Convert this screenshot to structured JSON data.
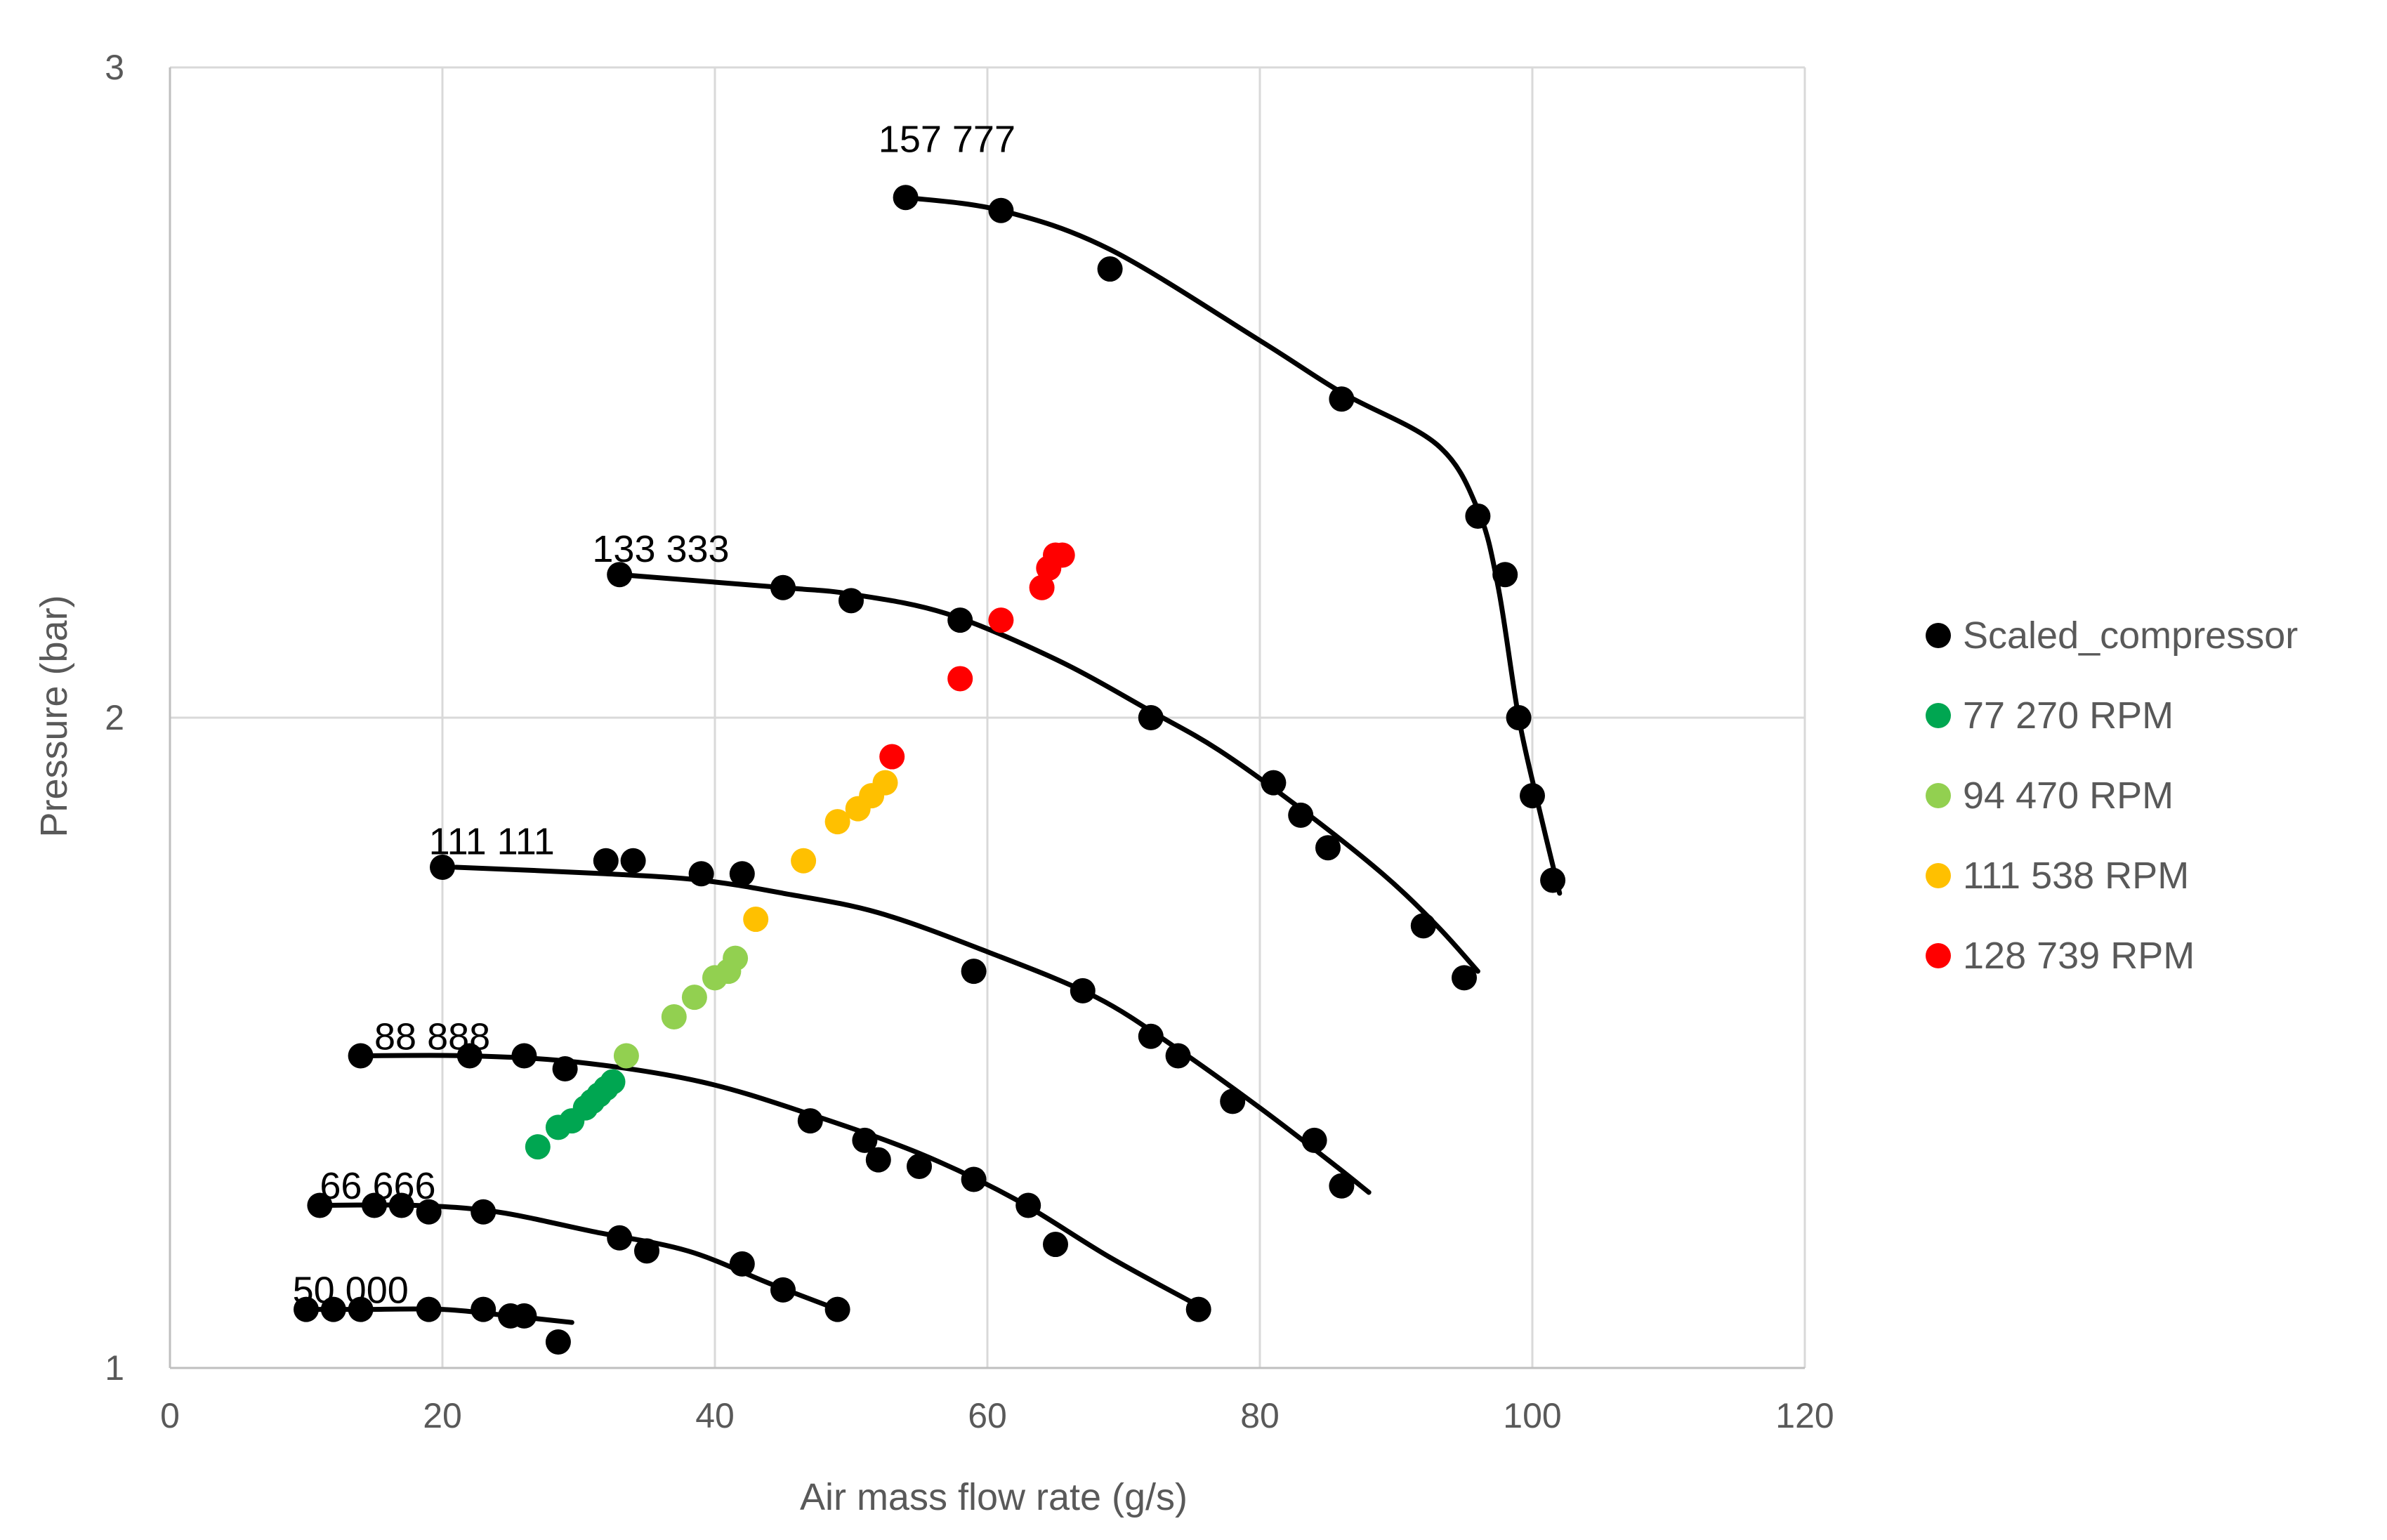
{
  "chart_data": {
    "type": "scatter",
    "title": "",
    "xlabel": "Air mass flow rate (g/s)",
    "ylabel": "Pressure (bar)",
    "xlim": [
      0,
      120
    ],
    "ylim": [
      1,
      3
    ],
    "xticks": [
      0,
      20,
      40,
      60,
      80,
      100,
      120
    ],
    "yticks": [
      1,
      2,
      3
    ],
    "grid": true,
    "legend_position": "right",
    "colors": {
      "Scaled_compressor": "#000000",
      "rpm77": "#00a651",
      "rpm94": "#92d050",
      "rpm111": "#ffc000",
      "rpm128": "#ff0000",
      "grid": "#d9d9d9",
      "axis": "#bfbfbf"
    },
    "series": [
      {
        "name": "Scaled_compressor",
        "color": "#000000",
        "points": [
          [
            54,
            2.8
          ],
          [
            61,
            2.78
          ],
          [
            69,
            2.69
          ],
          [
            86,
            2.49
          ],
          [
            96,
            2.31
          ],
          [
            98,
            2.22
          ],
          [
            99,
            2.0
          ],
          [
            100,
            1.88
          ],
          [
            101.5,
            1.75
          ],
          [
            33,
            2.22
          ],
          [
            45,
            2.2
          ],
          [
            50,
            2.18
          ],
          [
            58,
            2.15
          ],
          [
            72,
            2.0
          ],
          [
            81,
            1.9
          ],
          [
            83,
            1.85
          ],
          [
            85,
            1.8
          ],
          [
            92,
            1.68
          ],
          [
            95,
            1.6
          ],
          [
            20,
            1.77
          ],
          [
            32,
            1.78
          ],
          [
            34,
            1.78
          ],
          [
            39,
            1.76
          ],
          [
            42,
            1.76
          ],
          [
            59,
            1.61
          ],
          [
            67,
            1.58
          ],
          [
            72,
            1.51
          ],
          [
            74,
            1.48
          ],
          [
            78,
            1.41
          ],
          [
            84,
            1.35
          ],
          [
            86,
            1.28
          ],
          [
            14,
            1.48
          ],
          [
            22,
            1.48
          ],
          [
            26,
            1.48
          ],
          [
            29,
            1.46
          ],
          [
            47,
            1.38
          ],
          [
            51,
            1.35
          ],
          [
            52,
            1.32
          ],
          [
            55,
            1.31
          ],
          [
            59,
            1.29
          ],
          [
            63,
            1.25
          ],
          [
            65,
            1.19
          ],
          [
            75.5,
            1.09
          ],
          [
            11,
            1.25
          ],
          [
            15,
            1.25
          ],
          [
            17,
            1.25
          ],
          [
            19,
            1.24
          ],
          [
            23,
            1.24
          ],
          [
            33,
            1.2
          ],
          [
            35,
            1.18
          ],
          [
            42,
            1.16
          ],
          [
            45,
            1.12
          ],
          [
            49,
            1.09
          ],
          [
            10,
            1.09
          ],
          [
            12,
            1.09
          ],
          [
            14,
            1.09
          ],
          [
            19,
            1.09
          ],
          [
            23,
            1.09
          ],
          [
            25,
            1.08
          ],
          [
            26,
            1.08
          ],
          [
            28.5,
            1.04
          ]
        ]
      },
      {
        "name": "77 270 RPM",
        "color": "#00a651",
        "points": [
          [
            27,
            1.34
          ],
          [
            28.5,
            1.37
          ],
          [
            29.5,
            1.38
          ],
          [
            30.5,
            1.4
          ],
          [
            31,
            1.41
          ],
          [
            31.5,
            1.42
          ],
          [
            32,
            1.43
          ],
          [
            32.5,
            1.44
          ]
        ]
      },
      {
        "name": "94 470 RPM",
        "color": "#92d050",
        "points": [
          [
            33.5,
            1.48
          ],
          [
            37,
            1.54
          ],
          [
            38.5,
            1.57
          ],
          [
            40,
            1.6
          ],
          [
            41,
            1.61
          ],
          [
            41.5,
            1.63
          ]
        ]
      },
      {
        "name": "111 538 RPM",
        "color": "#ffc000",
        "points": [
          [
            43,
            1.69
          ],
          [
            46.5,
            1.78
          ],
          [
            49,
            1.84
          ],
          [
            50.5,
            1.86
          ],
          [
            51.5,
            1.88
          ],
          [
            52.5,
            1.9
          ]
        ]
      },
      {
        "name": "128 739 RPM",
        "color": "#ff0000",
        "points": [
          [
            53,
            1.94
          ],
          [
            58,
            2.06
          ],
          [
            61,
            2.15
          ],
          [
            64,
            2.2
          ],
          [
            64.5,
            2.23
          ],
          [
            65,
            2.25
          ],
          [
            65.5,
            2.25
          ]
        ]
      }
    ],
    "speed_lines": [
      {
        "label": "157 777",
        "label_at": [
          52,
          2.87
        ],
        "points": [
          [
            54,
            2.8
          ],
          [
            61,
            2.78
          ],
          [
            69,
            2.72
          ],
          [
            80,
            2.58
          ],
          [
            86,
            2.5
          ],
          [
            93,
            2.42
          ],
          [
            96,
            2.32
          ],
          [
            97.5,
            2.2
          ],
          [
            99,
            2.0
          ],
          [
            100.5,
            1.86
          ],
          [
            102,
            1.73
          ]
        ]
      },
      {
        "label": "133 333",
        "label_at": [
          31,
          2.24
        ],
        "points": [
          [
            33,
            2.22
          ],
          [
            45,
            2.2
          ],
          [
            50,
            2.19
          ],
          [
            57,
            2.16
          ],
          [
            65,
            2.09
          ],
          [
            72,
            2.01
          ],
          [
            77,
            1.95
          ],
          [
            83,
            1.86
          ],
          [
            89,
            1.76
          ],
          [
            93,
            1.68
          ],
          [
            96,
            1.61
          ]
        ]
      },
      {
        "label": "111 111",
        "label_at": [
          19,
          1.79
        ],
        "points": [
          [
            21,
            1.77
          ],
          [
            32,
            1.76
          ],
          [
            39,
            1.75
          ],
          [
            45,
            1.73
          ],
          [
            52,
            1.7
          ],
          [
            60,
            1.64
          ],
          [
            68,
            1.57
          ],
          [
            74,
            1.49
          ],
          [
            80,
            1.4
          ],
          [
            85,
            1.32
          ],
          [
            88,
            1.27
          ]
        ]
      },
      {
        "label": "88 888",
        "label_at": [
          15,
          1.49
        ],
        "points": [
          [
            14,
            1.48
          ],
          [
            22,
            1.48
          ],
          [
            30,
            1.47
          ],
          [
            39,
            1.44
          ],
          [
            47,
            1.39
          ],
          [
            55,
            1.33
          ],
          [
            62,
            1.26
          ],
          [
            69,
            1.17
          ],
          [
            76,
            1.09
          ]
        ]
      },
      {
        "label": "66 666",
        "label_at": [
          11,
          1.26
        ],
        "points": [
          [
            11,
            1.25
          ],
          [
            18,
            1.25
          ],
          [
            24,
            1.24
          ],
          [
            31,
            1.21
          ],
          [
            38,
            1.18
          ],
          [
            44,
            1.13
          ],
          [
            49,
            1.09
          ]
        ]
      },
      {
        "label": "50 000",
        "label_at": [
          9,
          1.1
        ],
        "points": [
          [
            10,
            1.09
          ],
          [
            14,
            1.09
          ],
          [
            20,
            1.09
          ],
          [
            25,
            1.08
          ],
          [
            29.5,
            1.07
          ]
        ]
      }
    ]
  },
  "legend": [
    {
      "label": "Scaled_compressor",
      "color": "#000000"
    },
    {
      "label": "77 270 RPM",
      "color": "#00a651"
    },
    {
      "label": "94 470 RPM",
      "color": "#92d050"
    },
    {
      "label": "111 538 RPM",
      "color": "#ffc000"
    },
    {
      "label": "128 739 RPM",
      "color": "#ff0000"
    }
  ]
}
